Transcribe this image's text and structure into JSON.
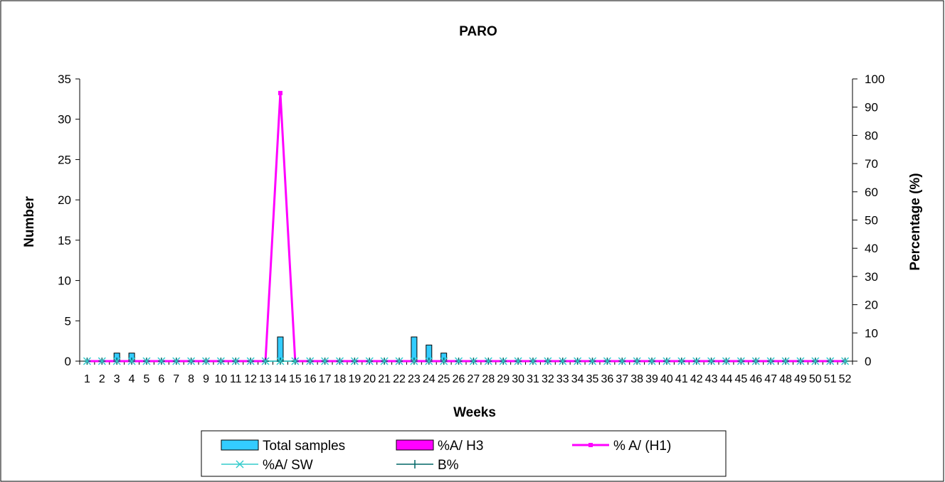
{
  "chart_data": {
    "type": "bar",
    "title": "PARO",
    "xlabel": "Weeks",
    "ylabel": "Number",
    "y2label": "Percentage (%)",
    "ylim": [
      0,
      35
    ],
    "y2lim": [
      0,
      100
    ],
    "yticks": [
      0,
      5,
      10,
      15,
      20,
      25,
      30,
      35
    ],
    "y2ticks": [
      0,
      10,
      20,
      30,
      40,
      50,
      60,
      70,
      80,
      90,
      100
    ],
    "categories": [
      "1",
      "2",
      "3",
      "4",
      "5",
      "6",
      "7",
      "8",
      "9",
      "10",
      "11",
      "12",
      "13",
      "14",
      "15",
      "16",
      "17",
      "18",
      "19",
      "20",
      "21",
      "22",
      "23",
      "24",
      "25",
      "26",
      "27",
      "28",
      "29",
      "30",
      "31",
      "32",
      "33",
      "34",
      "35",
      "36",
      "37",
      "38",
      "39",
      "40",
      "41",
      "42",
      "43",
      "44",
      "45",
      "46",
      "47",
      "48",
      "49",
      "50",
      "51",
      "52"
    ],
    "grid": false,
    "legend_position": "bottom",
    "series": [
      {
        "name": "Total samples",
        "type": "bar",
        "axis": "left",
        "color": "#33CCFF",
        "values": [
          0,
          0,
          1,
          1,
          0,
          0,
          0,
          0,
          0,
          0,
          0,
          0,
          0,
          3,
          0,
          0,
          0,
          0,
          0,
          0,
          0,
          0,
          3,
          2,
          1,
          0,
          0,
          0,
          0,
          0,
          0,
          0,
          0,
          0,
          0,
          0,
          0,
          0,
          0,
          0,
          0,
          0,
          0,
          0,
          0,
          0,
          0,
          0,
          0,
          0,
          0,
          0
        ]
      },
      {
        "name": "%A/ H3",
        "type": "bar",
        "axis": "right",
        "color": "#FF00FF",
        "values": [
          0,
          0,
          0,
          0,
          0,
          0,
          0,
          0,
          0,
          0,
          0,
          0,
          0,
          0,
          0,
          0,
          0,
          0,
          0,
          0,
          0,
          0,
          0,
          0,
          0,
          0,
          0,
          0,
          0,
          0,
          0,
          0,
          0,
          0,
          0,
          0,
          0,
          0,
          0,
          0,
          0,
          0,
          0,
          0,
          0,
          0,
          0,
          0,
          0,
          0,
          0,
          0
        ]
      },
      {
        "name": "% A/ (H1)",
        "type": "line",
        "axis": "right",
        "color": "#FF00FF",
        "values": [
          0,
          0,
          0,
          0,
          0,
          0,
          0,
          0,
          0,
          0,
          0,
          0,
          0,
          95,
          0,
          0,
          0,
          0,
          0,
          0,
          0,
          0,
          0,
          0,
          0,
          0,
          0,
          0,
          0,
          0,
          0,
          0,
          0,
          0,
          0,
          0,
          0,
          0,
          0,
          0,
          0,
          0,
          0,
          0,
          0,
          0,
          0,
          0,
          0,
          0,
          0,
          0
        ]
      },
      {
        "name": "%A/ SW",
        "type": "line",
        "axis": "right",
        "color": "#33CCCC",
        "marker": "x",
        "values": [
          0,
          0,
          0,
          0,
          0,
          0,
          0,
          0,
          0,
          0,
          0,
          0,
          0,
          0,
          0,
          0,
          0,
          0,
          0,
          0,
          0,
          0,
          0,
          0,
          0,
          0,
          0,
          0,
          0,
          0,
          0,
          0,
          0,
          0,
          0,
          0,
          0,
          0,
          0,
          0,
          0,
          0,
          0,
          0,
          0,
          0,
          0,
          0,
          0,
          0,
          0,
          0
        ]
      },
      {
        "name": "B%",
        "type": "line",
        "axis": "right",
        "color": "#006666",
        "marker": "plus",
        "values": [
          0,
          0,
          0,
          0,
          0,
          0,
          0,
          0,
          0,
          0,
          0,
          0,
          0,
          0,
          0,
          0,
          0,
          0,
          0,
          0,
          0,
          0,
          0,
          0,
          0,
          0,
          0,
          0,
          0,
          0,
          0,
          0,
          0,
          0,
          0,
          0,
          0,
          0,
          0,
          0,
          0,
          0,
          0,
          0,
          0,
          0,
          0,
          0,
          0,
          0,
          0,
          0
        ]
      }
    ]
  }
}
